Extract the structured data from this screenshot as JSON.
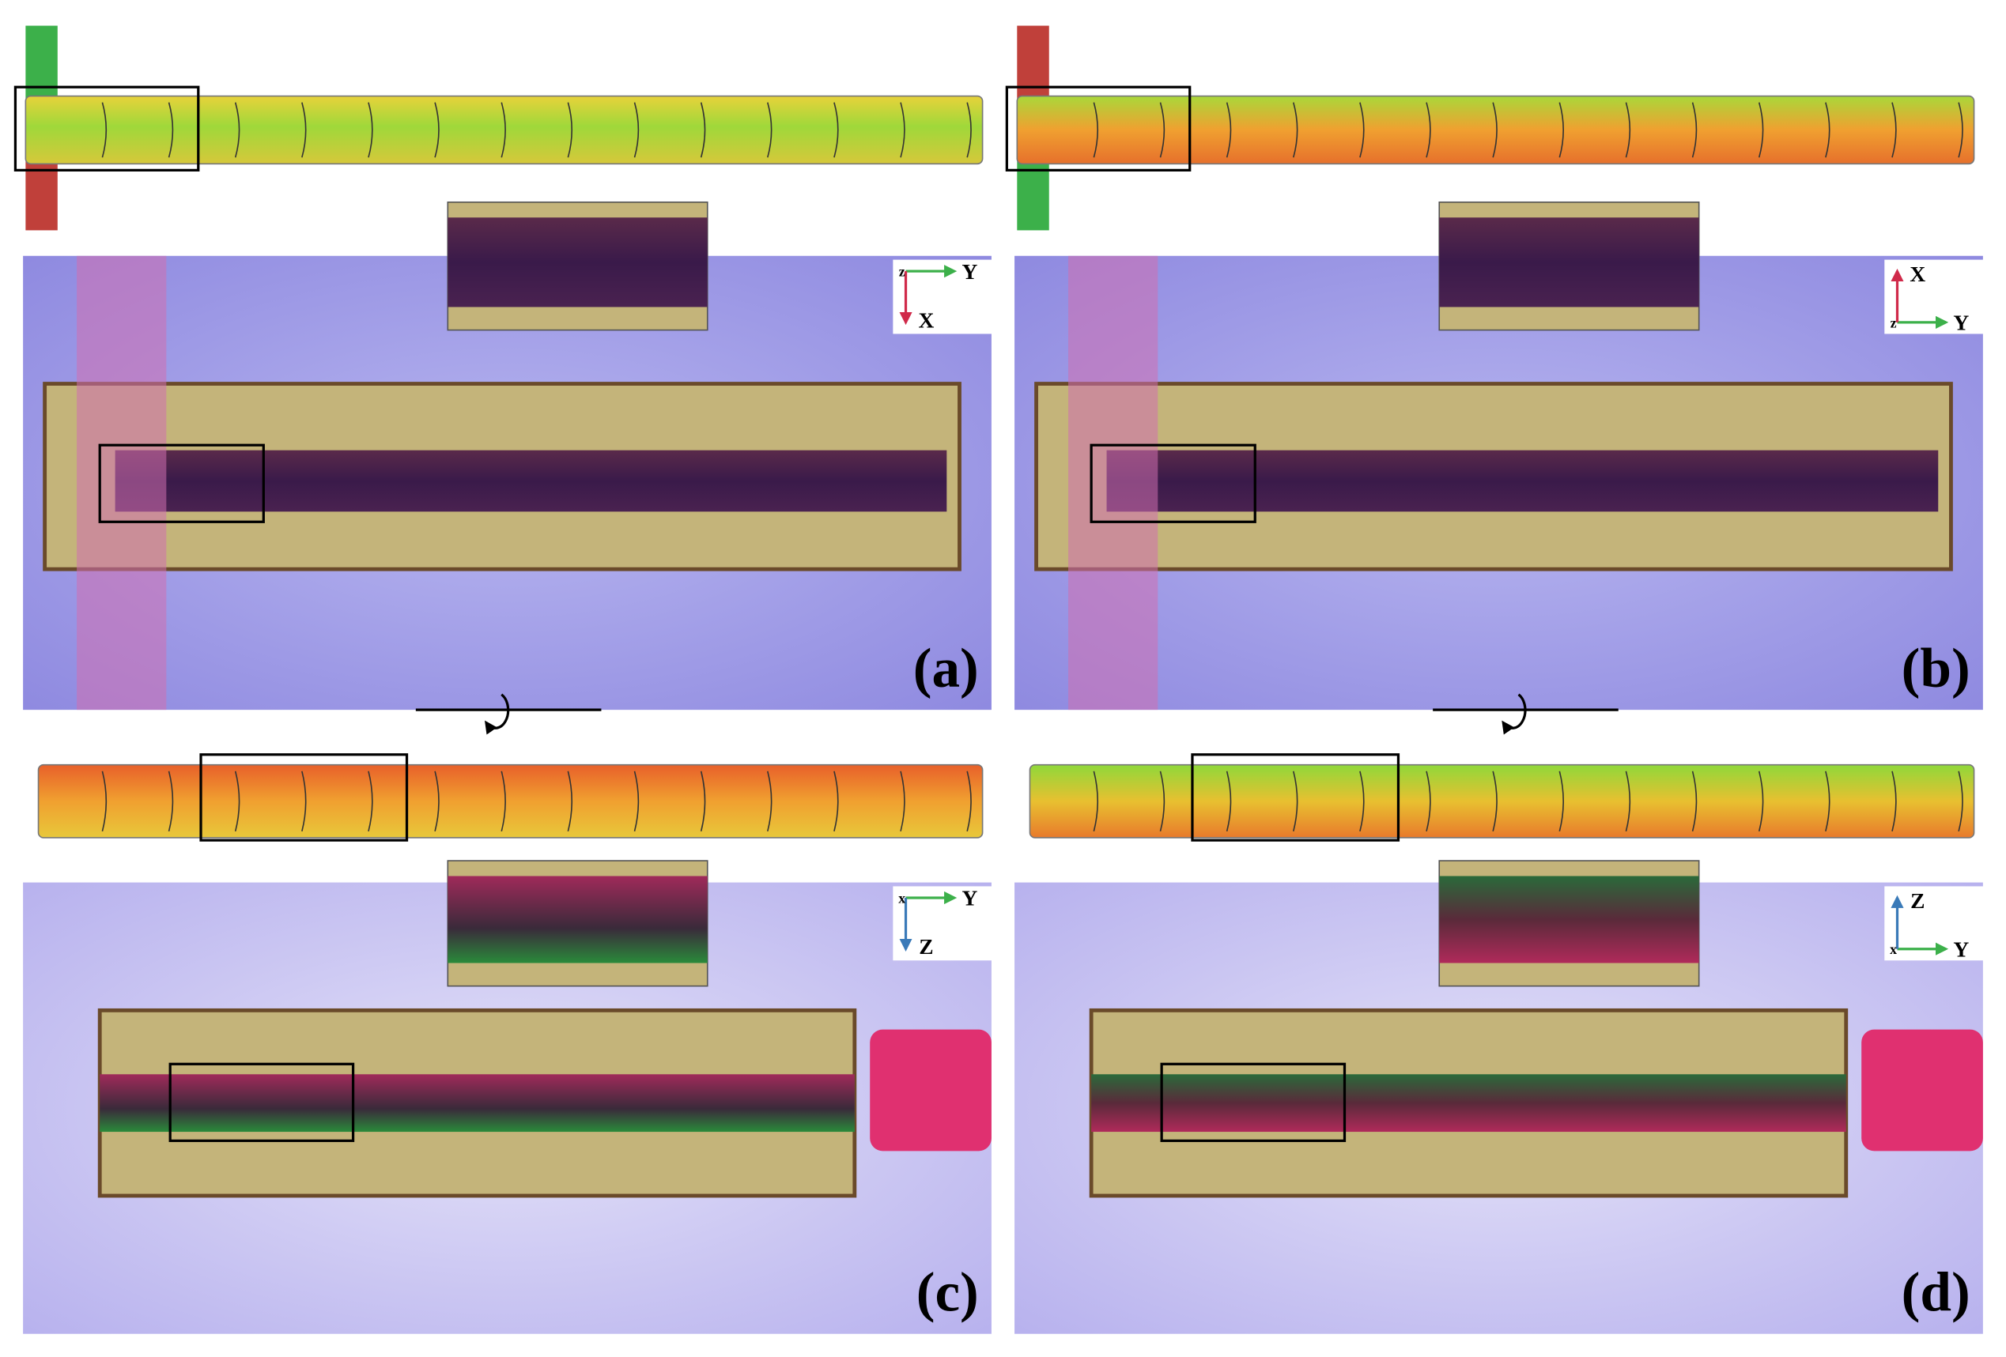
{
  "panels": [
    {
      "label": "(a)",
      "axes": {
        "origin": "z",
        "h": "Y",
        "v": "X"
      }
    },
    {
      "label": "(b)",
      "axes": {
        "origin": "z",
        "h": "Y",
        "v": "X"
      }
    },
    {
      "label": "(c)",
      "axes": {
        "origin": "x",
        "h": "Y",
        "v": "Z"
      }
    },
    {
      "label": "(d)",
      "axes": {
        "origin": "x",
        "h": "Y",
        "v": "Z"
      }
    }
  ]
}
